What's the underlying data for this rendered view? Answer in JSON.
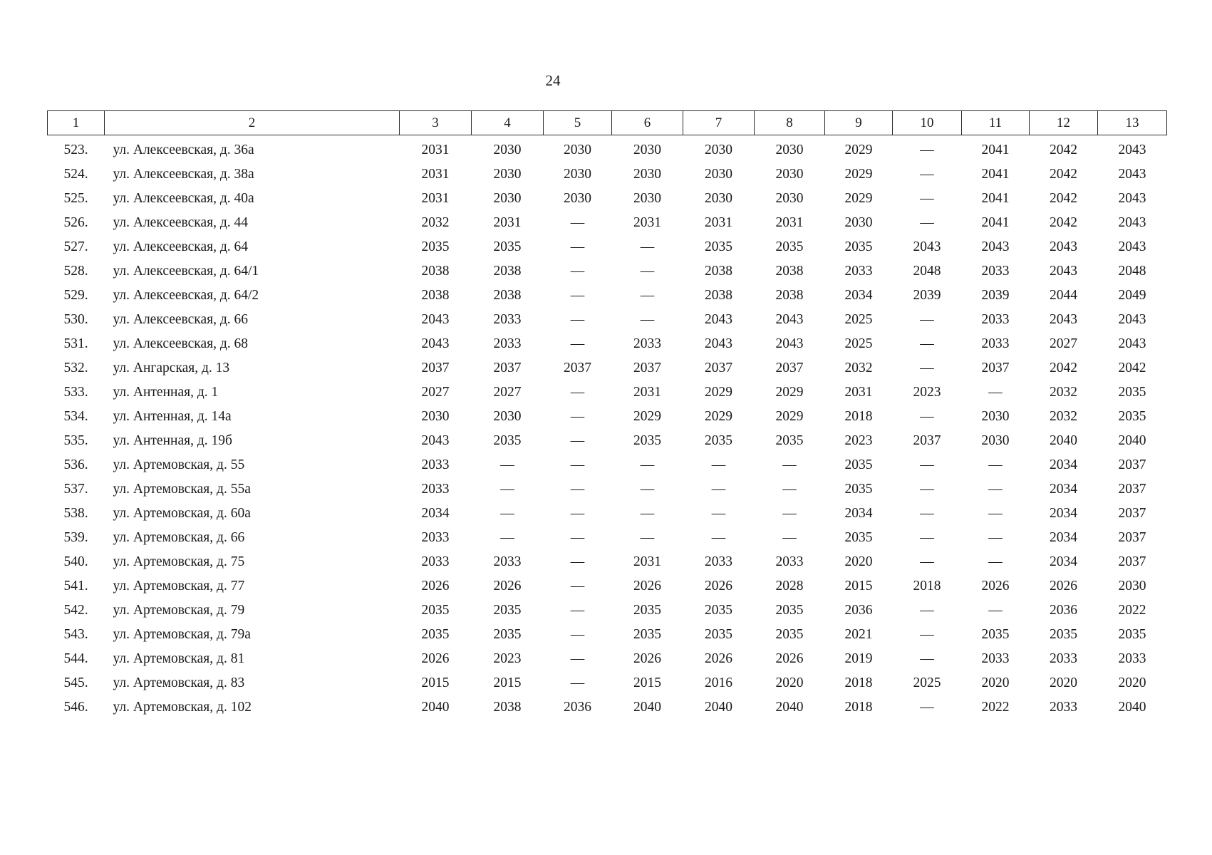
{
  "page": {
    "number": "24"
  },
  "table": {
    "headers": [
      "1",
      "2",
      "3",
      "4",
      "5",
      "6",
      "7",
      "8",
      "9",
      "10",
      "11",
      "12",
      "13"
    ],
    "rows": [
      {
        "num": "523.",
        "address": "ул. Алексеевская, д. 36а",
        "values": [
          "2031",
          "2030",
          "2030",
          "2030",
          "2030",
          "2030",
          "2029",
          "—",
          "2041",
          "2042",
          "2043"
        ]
      },
      {
        "num": "524.",
        "address": "ул. Алексеевская, д. 38а",
        "values": [
          "2031",
          "2030",
          "2030",
          "2030",
          "2030",
          "2030",
          "2029",
          "—",
          "2041",
          "2042",
          "2043"
        ]
      },
      {
        "num": "525.",
        "address": "ул. Алексеевская, д. 40а",
        "values": [
          "2031",
          "2030",
          "2030",
          "2030",
          "2030",
          "2030",
          "2029",
          "—",
          "2041",
          "2042",
          "2043"
        ]
      },
      {
        "num": "526.",
        "address": "ул. Алексеевская, д. 44",
        "values": [
          "2032",
          "2031",
          "—",
          "2031",
          "2031",
          "2031",
          "2030",
          "—",
          "2041",
          "2042",
          "2043"
        ]
      },
      {
        "num": "527.",
        "address": "ул. Алексеевская, д. 64",
        "values": [
          "2035",
          "2035",
          "—",
          "—",
          "2035",
          "2035",
          "2035",
          "2043",
          "2043",
          "2043",
          "2043"
        ]
      },
      {
        "num": "528.",
        "address": "ул. Алексеевская, д. 64/1",
        "values": [
          "2038",
          "2038",
          "—",
          "—",
          "2038",
          "2038",
          "2033",
          "2048",
          "2033",
          "2043",
          "2048"
        ]
      },
      {
        "num": "529.",
        "address": "ул. Алексеевская, д. 64/2",
        "values": [
          "2038",
          "2038",
          "—",
          "—",
          "2038",
          "2038",
          "2034",
          "2039",
          "2039",
          "2044",
          "2049"
        ]
      },
      {
        "num": "530.",
        "address": "ул. Алексеевская, д. 66",
        "values": [
          "2043",
          "2033",
          "—",
          "—",
          "2043",
          "2043",
          "2025",
          "—",
          "2033",
          "2043",
          "2043"
        ]
      },
      {
        "num": "531.",
        "address": "ул. Алексеевская, д. 68",
        "values": [
          "2043",
          "2033",
          "—",
          "2033",
          "2043",
          "2043",
          "2025",
          "—",
          "2033",
          "2027",
          "2043"
        ]
      },
      {
        "num": "532.",
        "address": "ул. Ангарская, д. 13",
        "values": [
          "2037",
          "2037",
          "2037",
          "2037",
          "2037",
          "2037",
          "2032",
          "—",
          "2037",
          "2042",
          "2042"
        ]
      },
      {
        "num": "533.",
        "address": "ул. Антенная, д. 1",
        "values": [
          "2027",
          "2027",
          "—",
          "2031",
          "2029",
          "2029",
          "2031",
          "2023",
          "—",
          "2032",
          "2035"
        ]
      },
      {
        "num": "534.",
        "address": "ул. Антенная, д. 14а",
        "values": [
          "2030",
          "2030",
          "—",
          "2029",
          "2029",
          "2029",
          "2018",
          "—",
          "2030",
          "2032",
          "2035"
        ]
      },
      {
        "num": "535.",
        "address": "ул. Антенная, д. 19б",
        "values": [
          "2043",
          "2035",
          "—",
          "2035",
          "2035",
          "2035",
          "2023",
          "2037",
          "2030",
          "2040",
          "2040"
        ]
      },
      {
        "num": "536.",
        "address": "ул. Артемовская, д. 55",
        "values": [
          "2033",
          "—",
          "—",
          "—",
          "—",
          "—",
          "2035",
          "—",
          "—",
          "2034",
          "2037"
        ]
      },
      {
        "num": "537.",
        "address": "ул. Артемовская, д. 55а",
        "values": [
          "2033",
          "—",
          "—",
          "—",
          "—",
          "—",
          "2035",
          "—",
          "—",
          "2034",
          "2037"
        ]
      },
      {
        "num": "538.",
        "address": "ул. Артемовская, д. 60а",
        "values": [
          "2034",
          "—",
          "—",
          "—",
          "—",
          "—",
          "2034",
          "—",
          "—",
          "2034",
          "2037"
        ]
      },
      {
        "num": "539.",
        "address": "ул. Артемовская, д. 66",
        "values": [
          "2033",
          "—",
          "—",
          "—",
          "—",
          "—",
          "2035",
          "—",
          "—",
          "2034",
          "2037"
        ]
      },
      {
        "num": "540.",
        "address": "ул. Артемовская, д. 75",
        "values": [
          "2033",
          "2033",
          "—",
          "2031",
          "2033",
          "2033",
          "2020",
          "—",
          "—",
          "2034",
          "2037"
        ]
      },
      {
        "num": "541.",
        "address": "ул. Артемовская, д. 77",
        "values": [
          "2026",
          "2026",
          "—",
          "2026",
          "2026",
          "2028",
          "2015",
          "2018",
          "2026",
          "2026",
          "2030"
        ]
      },
      {
        "num": "542.",
        "address": "ул. Артемовская, д. 79",
        "values": [
          "2035",
          "2035",
          "—",
          "2035",
          "2035",
          "2035",
          "2036",
          "—",
          "—",
          "2036",
          "2022"
        ]
      },
      {
        "num": "543.",
        "address": "ул. Артемовская, д. 79а",
        "values": [
          "2035",
          "2035",
          "—",
          "2035",
          "2035",
          "2035",
          "2021",
          "—",
          "2035",
          "2035",
          "2035"
        ]
      },
      {
        "num": "544.",
        "address": "ул. Артемовская, д. 81",
        "values": [
          "2026",
          "2023",
          "—",
          "2026",
          "2026",
          "2026",
          "2019",
          "—",
          "2033",
          "2033",
          "2033"
        ]
      },
      {
        "num": "545.",
        "address": "ул. Артемовская, д. 83",
        "values": [
          "2015",
          "2015",
          "—",
          "2015",
          "2016",
          "2020",
          "2018",
          "2025",
          "2020",
          "2020",
          "2020"
        ]
      },
      {
        "num": "546.",
        "address": "ул. Артемовская, д. 102",
        "values": [
          "2040",
          "2038",
          "2036",
          "2040",
          "2040",
          "2040",
          "2018",
          "—",
          "2022",
          "2033",
          "2040"
        ]
      }
    ]
  }
}
